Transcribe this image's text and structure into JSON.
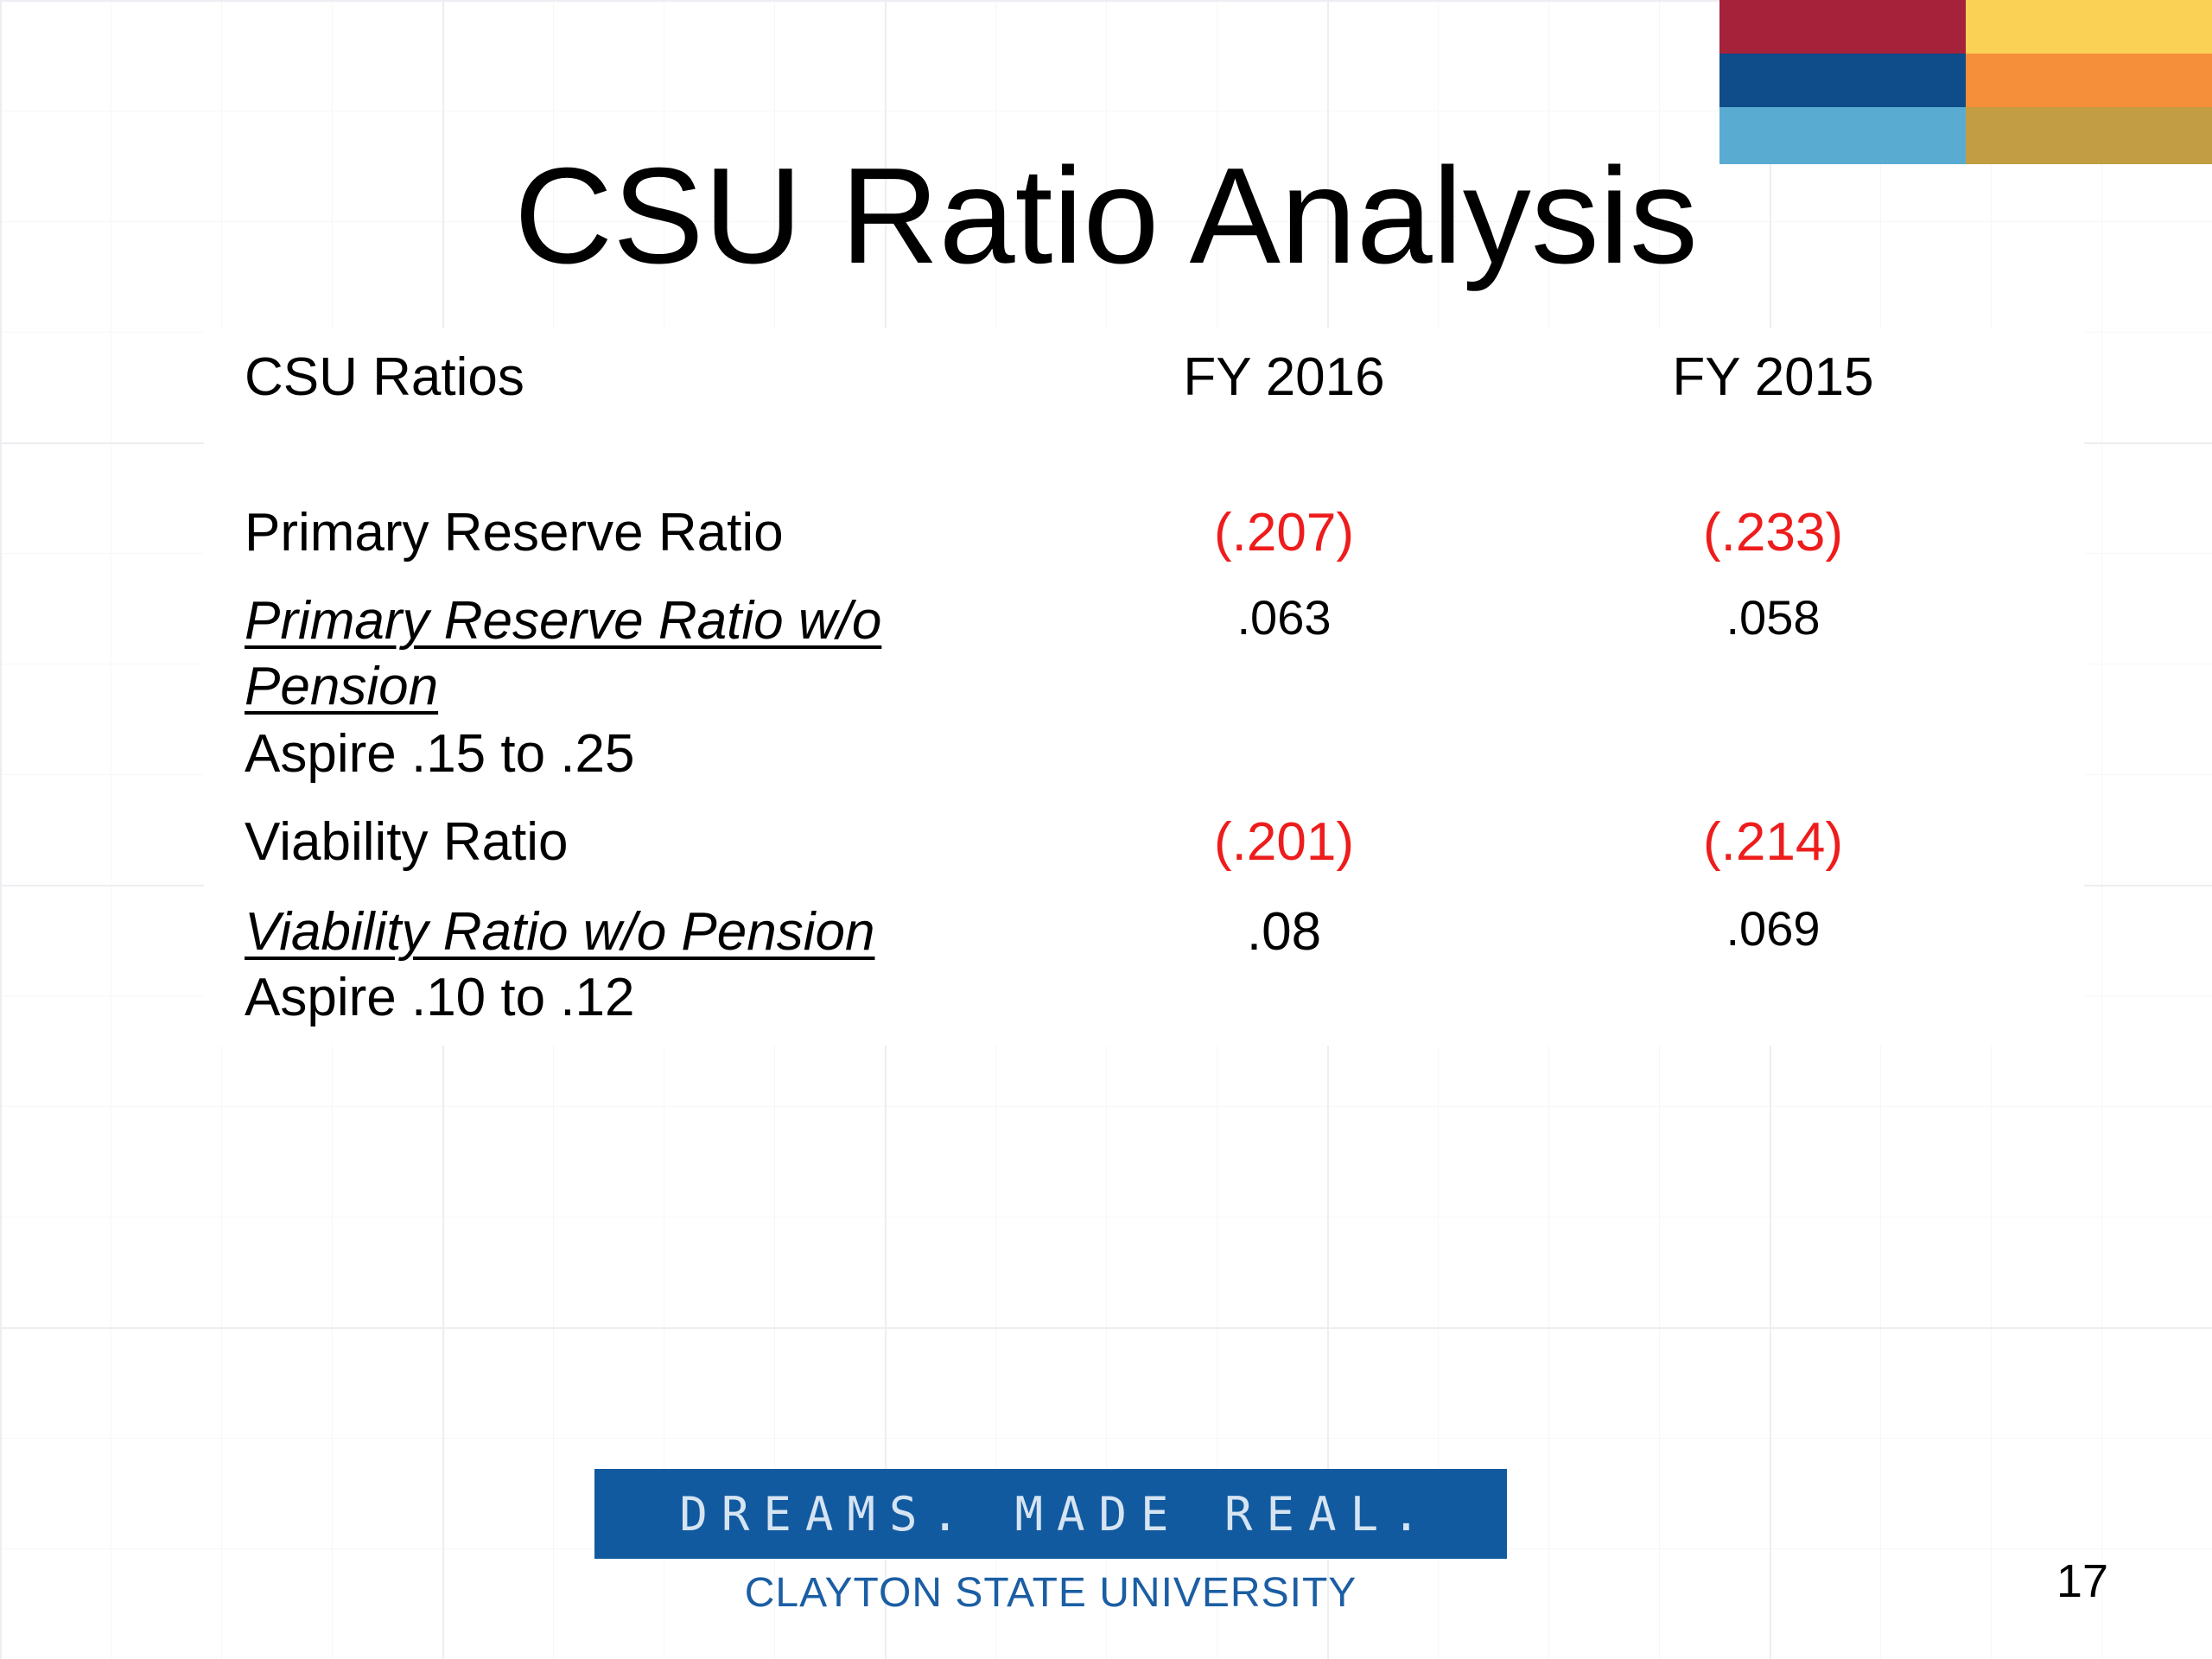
{
  "slide": {
    "title": "CSU Ratio Analysis",
    "page_number": "17",
    "accent_colors": {
      "crimson": "#a6213a",
      "yellow": "#fbd155",
      "navy": "#0f4c8a",
      "orange": "#f58f3a",
      "sky": "#5aabd2",
      "gold": "#c39d43"
    }
  },
  "table": {
    "headers": {
      "label": "CSU Ratios",
      "fy2016": "FY 2016",
      "fy2015": "FY 2015"
    },
    "rows": [
      {
        "label": "Primary Reserve Ratio",
        "fy2016": "(.207)",
        "fy2015": "(.233)"
      },
      {
        "label_line1": "Primary Reserve Ratio w/o",
        "label_line2": "Pension",
        "note": "Aspire .15 to .25",
        "fy2016": ".063",
        "fy2015": ".058"
      },
      {
        "label": "Viability Ratio",
        "fy2016": "(.201)",
        "fy2015": "(.214)"
      },
      {
        "label": "Viability Ratio w/o Pension",
        "note": "Aspire .10 to .12",
        "fy2016": ".08",
        "fy2015": ".069"
      }
    ]
  },
  "footer": {
    "tagline": "DREAMS. MADE REAL.",
    "university": "CLAYTON STATE UNIVERSITY"
  }
}
